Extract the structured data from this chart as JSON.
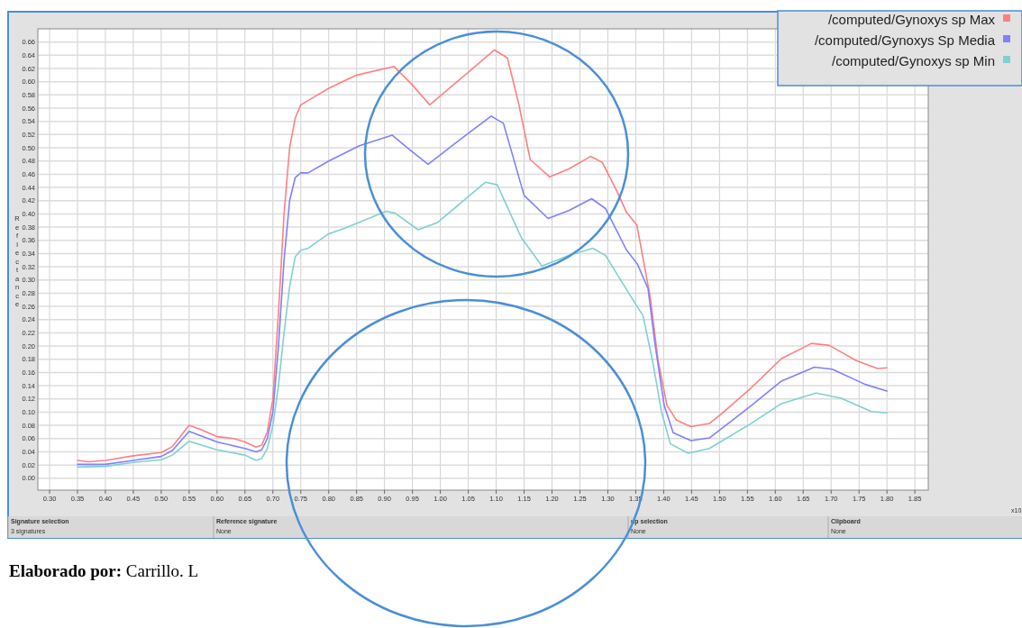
{
  "chart_data": {
    "type": "line",
    "ylabel": "Reflectance",
    "xlim": [
      0.279,
      1.874
    ],
    "ylim": [
      -0.018,
      0.68
    ],
    "xticks": [
      {
        "value": 0.3,
        "label": "0.30"
      },
      {
        "value": 0.35,
        "label": "0.35"
      },
      {
        "value": 0.4,
        "label": "0.40"
      },
      {
        "value": 0.45,
        "label": "0.45"
      },
      {
        "value": 0.5,
        "label": "0.50"
      },
      {
        "value": 0.55,
        "label": "0.55"
      },
      {
        "value": 0.6,
        "label": "0.60"
      },
      {
        "value": 0.65,
        "label": "0.65"
      },
      {
        "value": 0.7,
        "label": "0.70"
      },
      {
        "value": 0.75,
        "label": "0.75"
      },
      {
        "value": 0.8,
        "label": "0.80"
      },
      {
        "value": 0.85,
        "label": "0.85"
      },
      {
        "value": 0.9,
        "label": "0.90"
      },
      {
        "value": 0.95,
        "label": "0.95"
      },
      {
        "value": 1.0,
        "label": "1.00"
      },
      {
        "value": 1.05,
        "label": "1.05"
      },
      {
        "value": 1.1,
        "label": "1.10"
      },
      {
        "value": 1.15,
        "label": "1.15"
      },
      {
        "value": 1.2,
        "label": "1.20"
      },
      {
        "value": 1.25,
        "label": "1.25"
      },
      {
        "value": 1.3,
        "label": "1.30"
      },
      {
        "value": 1.35,
        "label": "1.35"
      },
      {
        "value": 1.4,
        "label": "1.40"
      },
      {
        "value": 1.45,
        "label": "1.45"
      },
      {
        "value": 1.5,
        "label": "1.50"
      },
      {
        "value": 1.55,
        "label": "1.55"
      },
      {
        "value": 1.6,
        "label": "1.60"
      },
      {
        "value": 1.65,
        "label": "1.65"
      },
      {
        "value": 1.7,
        "label": "1.70"
      },
      {
        "value": 1.75,
        "label": "1.75"
      },
      {
        "value": 1.8,
        "label": "1.80"
      },
      {
        "value": 1.85,
        "label": "1.85"
      }
    ],
    "yticks": [
      {
        "value": 0,
        "label": "0.00"
      },
      {
        "value": 0.02,
        "label": "0.02"
      },
      {
        "value": 0.04,
        "label": "0.04"
      },
      {
        "value": 0.06,
        "label": "0.06"
      },
      {
        "value": 0.08,
        "label": "0.08"
      },
      {
        "value": 0.1,
        "label": "0.10"
      },
      {
        "value": 0.12,
        "label": "0.12"
      },
      {
        "value": 0.14,
        "label": "0.14"
      },
      {
        "value": 0.16,
        "label": "0.16"
      },
      {
        "value": 0.18,
        "label": "0.18"
      },
      {
        "value": 0.2,
        "label": "0.20"
      },
      {
        "value": 0.22,
        "label": "0.22"
      },
      {
        "value": 0.24,
        "label": "0.24"
      },
      {
        "value": 0.26,
        "label": "0.26"
      },
      {
        "value": 0.28,
        "label": "0.28"
      },
      {
        "value": 0.3,
        "label": "0.30"
      },
      {
        "value": 0.32,
        "label": "0.32"
      },
      {
        "value": 0.34,
        "label": "0.34"
      },
      {
        "value": 0.36,
        "label": "0.36"
      },
      {
        "value": 0.38,
        "label": "0.38"
      },
      {
        "value": 0.4,
        "label": "0.40"
      },
      {
        "value": 0.42,
        "label": "0.42"
      },
      {
        "value": 0.44,
        "label": "0.44"
      },
      {
        "value": 0.46,
        "label": "0.46"
      },
      {
        "value": 0.48,
        "label": "0.48"
      },
      {
        "value": 0.5,
        "label": "0.50"
      },
      {
        "value": 0.52,
        "label": "0.52"
      },
      {
        "value": 0.54,
        "label": "0.54"
      },
      {
        "value": 0.56,
        "label": "0.56"
      },
      {
        "value": 0.58,
        "label": "0.58"
      },
      {
        "value": 0.6,
        "label": "0.60"
      },
      {
        "value": 0.62,
        "label": "0.62"
      },
      {
        "value": 0.64,
        "label": "0.64"
      },
      {
        "value": 0.66,
        "label": "0.66"
      }
    ],
    "grid": true,
    "legend": "top right",
    "series": [
      {
        "name": "/computed/Gynoxys sp Max",
        "color": "#ff8080",
        "x": [
          0.35,
          0.37,
          0.4,
          0.45,
          0.5,
          0.52,
          0.55,
          0.57,
          0.6,
          0.63,
          0.65,
          0.67,
          0.68,
          0.69,
          0.7,
          0.71,
          0.72,
          0.73,
          0.74,
          0.75,
          0.78,
          0.8,
          0.85,
          0.917,
          0.95,
          0.981,
          1.03,
          1.097,
          1.12,
          1.14,
          1.161,
          1.196,
          1.23,
          1.269,
          1.29,
          1.317,
          1.333,
          1.352,
          1.376,
          1.39,
          1.406,
          1.423,
          1.449,
          1.482,
          1.503,
          1.557,
          1.611,
          1.665,
          1.697,
          1.745,
          1.783,
          1.8
        ],
        "values": [
          0.027,
          0.025,
          0.027,
          0.034,
          0.039,
          0.048,
          0.08,
          0.074,
          0.063,
          0.06,
          0.055,
          0.047,
          0.05,
          0.07,
          0.12,
          0.25,
          0.4,
          0.5,
          0.545,
          0.565,
          0.58,
          0.59,
          0.61,
          0.623,
          0.595,
          0.565,
          0.6,
          0.648,
          0.636,
          0.568,
          0.482,
          0.456,
          0.468,
          0.487,
          0.478,
          0.433,
          0.403,
          0.383,
          0.274,
          0.178,
          0.11,
          0.088,
          0.078,
          0.083,
          0.097,
          0.137,
          0.181,
          0.204,
          0.201,
          0.178,
          0.166,
          0.167
        ]
      },
      {
        "name": "/computed/Gynoxys Sp Media",
        "color": "#8080ff",
        "x": [
          0.35,
          0.4,
          0.45,
          0.5,
          0.52,
          0.55,
          0.6,
          0.65,
          0.67,
          0.68,
          0.69,
          0.7,
          0.71,
          0.72,
          0.73,
          0.74,
          0.75,
          0.763,
          0.8,
          0.855,
          0.914,
          0.941,
          0.978,
          1.016,
          1.091,
          1.113,
          1.15,
          1.193,
          1.23,
          1.271,
          1.296,
          1.333,
          1.353,
          1.372,
          1.385,
          1.401,
          1.417,
          1.449,
          1.482,
          1.557,
          1.611,
          1.67,
          1.702,
          1.761,
          1.8
        ],
        "values": [
          0.021,
          0.021,
          0.027,
          0.033,
          0.042,
          0.071,
          0.055,
          0.045,
          0.04,
          0.043,
          0.06,
          0.1,
          0.2,
          0.33,
          0.42,
          0.455,
          0.462,
          0.462,
          0.48,
          0.503,
          0.519,
          0.5,
          0.475,
          0.5,
          0.548,
          0.537,
          0.428,
          0.393,
          0.405,
          0.423,
          0.408,
          0.346,
          0.324,
          0.287,
          0.2,
          0.11,
          0.069,
          0.057,
          0.061,
          0.11,
          0.147,
          0.168,
          0.165,
          0.142,
          0.132
        ]
      },
      {
        "name": "/computed/Gynoxys sp Min",
        "color": "#80d0d0",
        "x": [
          0.35,
          0.4,
          0.45,
          0.5,
          0.52,
          0.55,
          0.6,
          0.65,
          0.67,
          0.68,
          0.69,
          0.7,
          0.71,
          0.72,
          0.73,
          0.74,
          0.75,
          0.763,
          0.8,
          0.828,
          0.903,
          0.919,
          0.96,
          0.995,
          1.081,
          1.102,
          1.145,
          1.182,
          1.23,
          1.273,
          1.296,
          1.339,
          1.363,
          1.38,
          1.396,
          1.412,
          1.444,
          1.482,
          1.557,
          1.611,
          1.673,
          1.718,
          1.772,
          1.8
        ],
        "values": [
          0.017,
          0.018,
          0.024,
          0.028,
          0.035,
          0.056,
          0.043,
          0.035,
          0.027,
          0.03,
          0.045,
          0.08,
          0.14,
          0.22,
          0.29,
          0.335,
          0.345,
          0.348,
          0.37,
          0.378,
          0.404,
          0.401,
          0.376,
          0.387,
          0.448,
          0.444,
          0.364,
          0.321,
          0.337,
          0.348,
          0.337,
          0.278,
          0.246,
          0.178,
          0.101,
          0.052,
          0.038,
          0.045,
          0.083,
          0.113,
          0.129,
          0.121,
          0.101,
          0.099
        ]
      }
    ],
    "annotations": [
      "x10",
      "Signature selection",
      "3 signatures",
      "Reference signature",
      "None",
      "up selection",
      "None",
      "Clipboard",
      "None",
      "Elaborado por: Carrillo. L"
    ]
  }
}
